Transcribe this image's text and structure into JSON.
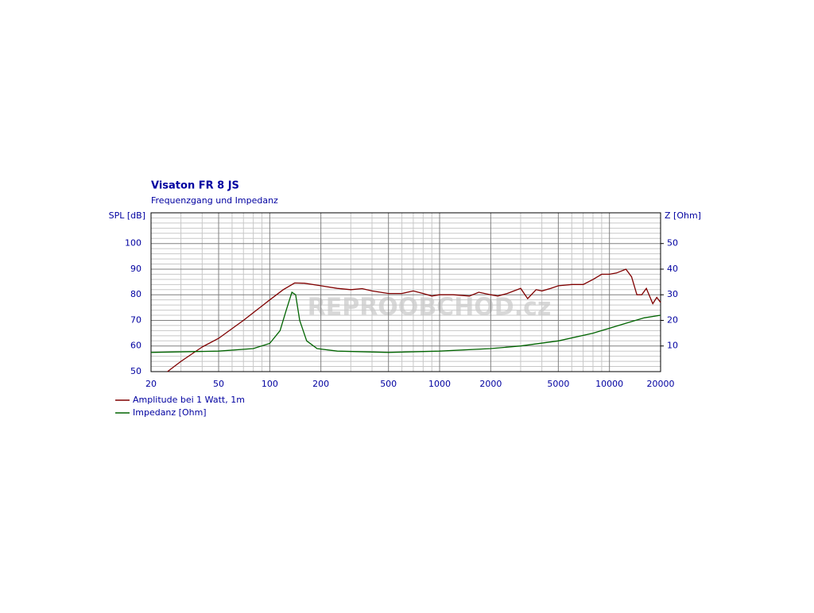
{
  "chart_data": {
    "type": "line",
    "title": "Visaton FR 8 JS",
    "subtitle": "Frequenzgang und Impedanz",
    "y_label": "SPL [dB]",
    "y2_label": "Z [Ohm]",
    "watermark": "REPROOBCHOD.cz",
    "x_log": true,
    "grid": true,
    "legend": "bottom-left",
    "xlim": [
      20,
      20000
    ],
    "xticks": [
      20,
      50,
      100,
      200,
      500,
      1000,
      2000,
      5000,
      10000,
      20000
    ],
    "x_minor_ticks": [
      30,
      40,
      60,
      70,
      80,
      90,
      300,
      400,
      600,
      700,
      800,
      900,
      3000,
      4000,
      6000,
      7000,
      8000,
      9000
    ],
    "ylim": [
      50,
      112
    ],
    "yticks": [
      50,
      60,
      70,
      80,
      90,
      100
    ],
    "y_minor_ticks": [
      52,
      54,
      56,
      58,
      62,
      64,
      66,
      68,
      72,
      74,
      76,
      78,
      82,
      84,
      86,
      88,
      92,
      94,
      96,
      98,
      102,
      104,
      106,
      108,
      110
    ],
    "y2lim": [
      0,
      62
    ],
    "y2ticks": [
      10,
      20,
      30,
      40,
      50
    ],
    "series": [
      {
        "name": "Amplitude bei 1 Watt, 1m",
        "color": "#800000",
        "x": [
          25,
          30,
          40,
          50,
          70,
          100,
          120,
          140,
          160,
          200,
          250,
          300,
          350,
          400,
          500,
          600,
          700,
          800,
          900,
          1000,
          1200,
          1500,
          1700,
          2000,
          2200,
          2500,
          3000,
          3300,
          3700,
          4000,
          4500,
          5000,
          6000,
          7000,
          8000,
          9000,
          10000,
          11000,
          12500,
          13500,
          14500,
          15500,
          16500,
          18000,
          19000,
          20000
        ],
        "values": [
          50,
          54,
          59.6,
          63,
          70,
          78,
          82,
          84.6,
          84.5,
          83.5,
          82.5,
          82,
          82.4,
          81.5,
          80.5,
          80.5,
          81.5,
          80.5,
          79.5,
          80,
          80,
          79.5,
          81,
          80,
          79.5,
          80.5,
          82.5,
          78.5,
          82,
          81.5,
          82.5,
          83.5,
          84,
          84,
          86,
          88,
          88,
          88.5,
          90,
          87,
          80,
          80,
          82.5,
          76.5,
          79,
          77
        ]
      },
      {
        "name": "Impedanz [Ohm]",
        "color": "#006400",
        "axis": "y2",
        "x": [
          20,
          50,
          80,
          100,
          115,
          125,
          135,
          142,
          150,
          165,
          190,
          250,
          500,
          1000,
          2000,
          3000,
          5000,
          8000,
          12000,
          16000,
          20000
        ],
        "values": [
          7.5,
          8,
          9,
          11,
          16,
          24,
          31,
          30,
          20,
          12,
          9,
          8,
          7.5,
          8,
          9,
          10,
          12,
          15,
          18.5,
          21,
          22
        ]
      }
    ]
  }
}
